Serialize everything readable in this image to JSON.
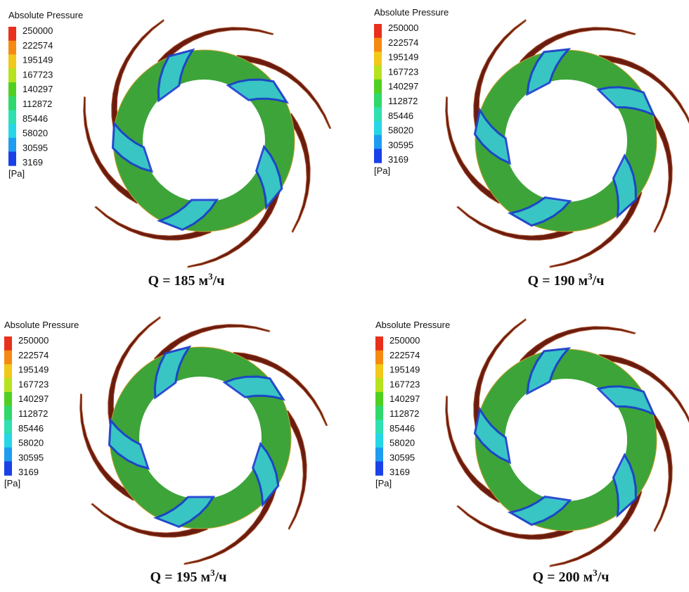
{
  "panels": [
    {
      "legend": {
        "title": "Absolute Pressure",
        "labels": [
          "250000",
          "222574",
          "195149",
          "167723",
          "140297",
          "112872",
          "85446",
          "58020",
          "30595",
          "3169"
        ],
        "unit": "[Pa]"
      },
      "caption": {
        "prefix": "Q = 185 м",
        "sup": "3",
        "suffix": "/ч"
      }
    },
    {
      "legend": {
        "title": "Absolute Pressure",
        "labels": [
          "250000",
          "222574",
          "195149",
          "167723",
          "140297",
          "112872",
          "85446",
          "58020",
          "30595",
          "3169"
        ],
        "unit": "[Pa]"
      },
      "caption": {
        "prefix": "Q = 190 м",
        "sup": "3",
        "suffix": "/ч"
      }
    },
    {
      "legend": {
        "title": "Absolute Pressure",
        "labels": [
          "250000",
          "222574",
          "195149",
          "167723",
          "140297",
          "112872",
          "85446",
          "58020",
          "30595",
          "3169"
        ],
        "unit": "[Pa]"
      },
      "caption": {
        "prefix": "Q = 195 м",
        "sup": "3",
        "suffix": "/ч"
      }
    },
    {
      "legend": {
        "title": "Absolute Pressure",
        "labels": [
          "250000",
          "222574",
          "195149",
          "167723",
          "140297",
          "112872",
          "85446",
          "58020",
          "30595",
          "3169"
        ],
        "unit": "[Pa]"
      },
      "caption": {
        "prefix": "Q = 200 м",
        "sup": "3",
        "suffix": "/ч"
      }
    }
  ]
}
